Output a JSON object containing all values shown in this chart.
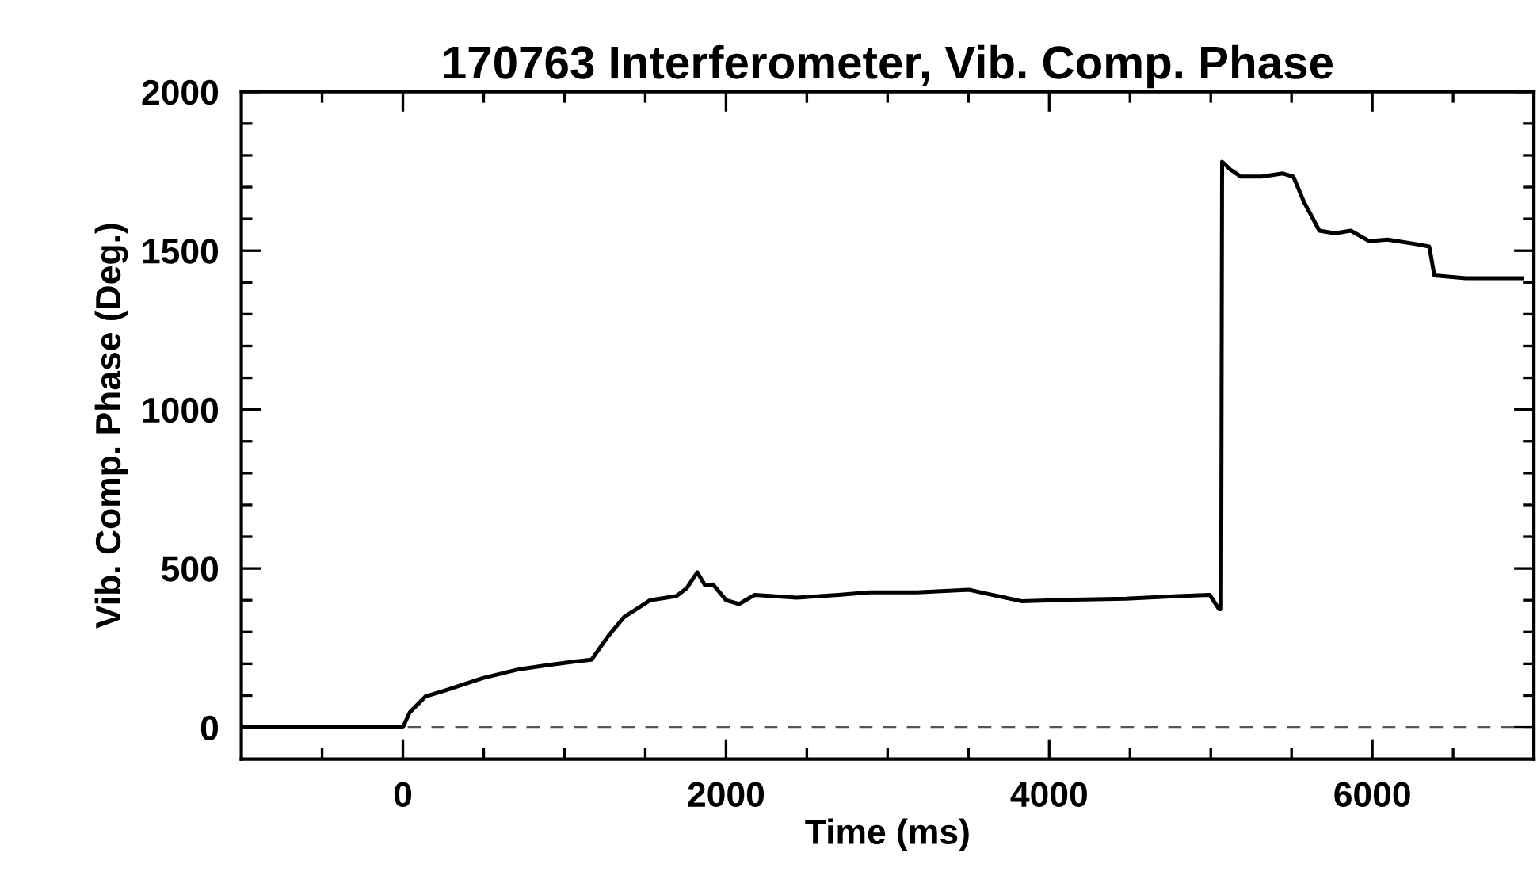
{
  "chart_data": {
    "type": "line",
    "title": "170763 Interferometer, Vib. Comp. Phase",
    "xlabel": "Time (ms)",
    "ylabel": "Vib. Comp. Phase (Deg.)",
    "series": [
      {
        "color": "#000000",
        "x": [
          -1000,
          0,
          42,
          139,
          268,
          495,
          721,
          916,
          1077,
          1168,
          1272,
          1369,
          1530,
          1692,
          1757,
          1822,
          1870,
          1919,
          2000,
          2081,
          2178,
          2437,
          2695,
          2890,
          3045,
          3181,
          3504,
          3601,
          3828,
          4151,
          4475,
          4799,
          4993,
          5051,
          5064,
          5070,
          5122,
          5187,
          5316,
          5446,
          5511,
          5575,
          5672,
          5769,
          5867,
          5980,
          6093,
          6255,
          6352,
          6384,
          6578,
          6928
        ],
        "values": [
          0,
          0,
          47,
          97,
          117,
          155,
          183,
          197,
          208,
          213,
          288,
          347,
          400,
          413,
          438,
          488,
          447,
          450,
          400,
          388,
          417,
          408,
          417,
          425,
          425,
          425,
          433,
          422,
          397,
          402,
          405,
          413,
          417,
          372,
          372,
          1780,
          1755,
          1733,
          1733,
          1743,
          1733,
          1655,
          1563,
          1555,
          1563,
          1530,
          1535,
          1522,
          1513,
          1422,
          1413,
          1413
        ]
      }
    ],
    "xlim": [
      -1000,
      7000
    ],
    "ylim": [
      -100,
      2000
    ],
    "xticks": [
      {
        "value": -500,
        "label": null
      },
      0,
      {
        "value": 500,
        "label": null
      },
      {
        "value": 1000,
        "label": null
      },
      {
        "value": 1500,
        "label": null
      },
      2000,
      {
        "value": 2500,
        "label": null
      },
      {
        "value": 3000,
        "label": null
      },
      {
        "value": 3500,
        "label": null
      },
      4000,
      {
        "value": 4500,
        "label": null
      },
      {
        "value": 5000,
        "label": null
      },
      {
        "value": 5500,
        "label": null
      },
      6000,
      {
        "value": 6500,
        "label": null
      }
    ],
    "yticks": [
      0,
      {
        "value": 100,
        "label": null
      },
      {
        "value": 200,
        "label": null
      },
      {
        "value": 300,
        "label": null
      },
      {
        "value": 400,
        "label": null
      },
      500,
      {
        "value": 600,
        "label": null
      },
      {
        "value": 700,
        "label": null
      },
      {
        "value": 800,
        "label": null
      },
      {
        "value": 900,
        "label": null
      },
      1000,
      {
        "value": 1100,
        "label": null
      },
      {
        "value": 1200,
        "label": null
      },
      {
        "value": 1300,
        "label": null
      },
      {
        "value": 1400,
        "label": null
      },
      1500,
      {
        "value": 1600,
        "label": null
      },
      {
        "value": 1700,
        "label": null
      },
      {
        "value": 1800,
        "label": null
      },
      {
        "value": 1900,
        "label": null
      },
      2000
    ],
    "ref_lines": [
      {
        "axis": "y",
        "value": 0,
        "line_style": "dashed",
        "color": "#555555"
      }
    ],
    "grid": false,
    "legend": false,
    "marker": "none",
    "line_style": "solid"
  }
}
